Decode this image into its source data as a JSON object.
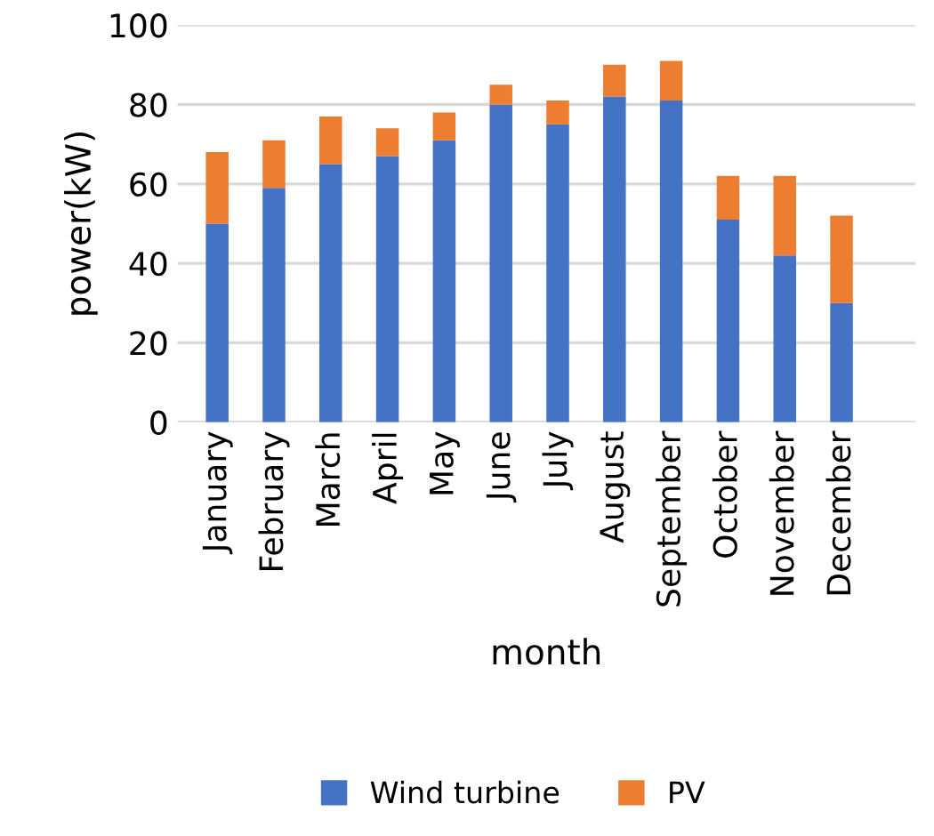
{
  "chart_data": {
    "type": "bar",
    "stacked": true,
    "xlabel": "month",
    "ylabel": "power(kW)",
    "categories": [
      "January",
      "February",
      "March",
      "April",
      "May",
      "June",
      "July",
      "August",
      "September",
      "October",
      "November",
      "December"
    ],
    "series": [
      {
        "name": "Wind turbine",
        "color": "#4472c4",
        "values": [
          50,
          59,
          65,
          67,
          71,
          80,
          75,
          82,
          81,
          51,
          42,
          30
        ]
      },
      {
        "name": "PV",
        "color": "#ed7d31",
        "values": [
          18,
          12,
          12,
          7,
          7,
          5,
          6,
          8,
          10,
          11,
          20,
          22
        ]
      }
    ],
    "ylim": [
      0,
      100
    ],
    "yticks": [
      0,
      20,
      40,
      60,
      80,
      100
    ],
    "grid": "y",
    "legend": "bottom"
  }
}
